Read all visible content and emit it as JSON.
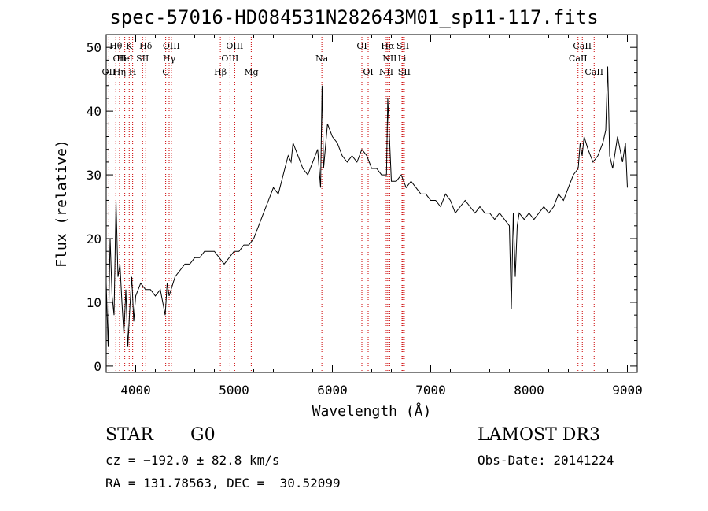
{
  "title": "spec-57016-HD084531N282643M01_sp11-117.fits",
  "info": {
    "class": "STAR",
    "subclass": "G0",
    "survey": "LAMOST DR3",
    "cz": "cz = −192.0 ± 82.8 km/s",
    "obs_date": "Obs-Date: 20141224",
    "coords": "RA = 131.78563, DEC =  30.52099"
  },
  "colors": {
    "spectrum": "#000000",
    "line_markers": "#cc0000",
    "axes": "#000000"
  },
  "chart_data": {
    "type": "line",
    "title": "spec-57016-HD084531N282643M01_sp11-117.fits",
    "xlabel": "Wavelength (Å)",
    "ylabel": "Flux (relative)",
    "xlim": [
      3700,
      9100
    ],
    "ylim": [
      -1,
      52
    ],
    "xticks": [
      4000,
      5000,
      6000,
      7000,
      8000,
      9000
    ],
    "yticks": [
      0,
      10,
      20,
      30,
      40,
      50
    ],
    "grid": false,
    "series": [
      {
        "x": [
          3700,
          3720,
          3740,
          3760,
          3780,
          3800,
          3820,
          3840,
          3860,
          3880,
          3900,
          3920,
          3940,
          3960,
          3980,
          4000,
          4050,
          4100,
          4150,
          4200,
          4250,
          4300,
          4320,
          4340,
          4400,
          4450,
          4500,
          4550,
          4600,
          4650,
          4700,
          4750,
          4800,
          4850,
          4900,
          4950,
          5000,
          5050,
          5100,
          5150,
          5200,
          5250,
          5300,
          5350,
          5400,
          5450,
          5500,
          5550,
          5580,
          5600,
          5650,
          5700,
          5750,
          5800,
          5850,
          5880,
          5895,
          5910,
          5950,
          6000,
          6050,
          6100,
          6150,
          6200,
          6250,
          6300,
          6350,
          6400,
          6450,
          6500,
          6550,
          6563,
          6600,
          6650,
          6700,
          6750,
          6800,
          6850,
          6900,
          6950,
          7000,
          7050,
          7100,
          7150,
          7200,
          7250,
          7300,
          7350,
          7400,
          7450,
          7500,
          7550,
          7600,
          7650,
          7700,
          7750,
          7800,
          7820,
          7840,
          7860,
          7880,
          7900,
          7950,
          8000,
          8050,
          8100,
          8150,
          8200,
          8250,
          8300,
          8350,
          8400,
          8450,
          8500,
          8520,
          8540,
          8560,
          8600,
          8650,
          8700,
          8750,
          8780,
          8800,
          8820,
          8850,
          8900,
          8950,
          8980,
          9000
        ],
        "y": [
          13,
          3,
          20,
          11,
          8,
          26,
          14,
          16,
          10,
          5,
          12,
          3,
          9,
          14,
          7,
          11,
          13,
          12,
          12,
          11,
          12,
          8,
          13,
          11,
          14,
          15,
          16,
          16,
          17,
          17,
          18,
          18,
          18,
          17,
          16,
          17,
          18,
          18,
          19,
          19,
          20,
          22,
          24,
          26,
          28,
          27,
          30,
          33,
          32,
          35,
          33,
          31,
          30,
          32,
          34,
          28,
          44,
          31,
          38,
          36,
          35,
          33,
          32,
          33,
          32,
          34,
          33,
          31,
          31,
          30,
          30,
          42,
          29,
          29,
          30,
          28,
          29,
          28,
          27,
          27,
          26,
          26,
          25,
          27,
          26,
          24,
          25,
          26,
          25,
          24,
          25,
          24,
          24,
          23,
          24,
          23,
          22,
          9,
          24,
          14,
          22,
          24,
          23,
          24,
          23,
          24,
          25,
          24,
          25,
          27,
          26,
          28,
          30,
          31,
          35,
          33,
          36,
          34,
          32,
          33,
          35,
          37,
          47,
          33,
          31,
          36,
          32,
          35,
          28
        ]
      }
    ],
    "line_labels": [
      {
        "name": "Hθ",
        "wl": 3798,
        "row": 1
      },
      {
        "name": "CII",
        "wl": 3836,
        "row": 2
      },
      {
        "name": "OII",
        "wl": 3727,
        "row": 3
      },
      {
        "name": "K",
        "wl": 3934,
        "row": 1
      },
      {
        "name": "HeI",
        "wl": 3889,
        "row": 2
      },
      {
        "name": "Hη",
        "wl": 3835,
        "row": 3
      },
      {
        "name": "Hδ",
        "wl": 4102,
        "row": 1
      },
      {
        "name": "SII",
        "wl": 4070,
        "row": 2
      },
      {
        "name": "H",
        "wl": 3969,
        "row": 3
      },
      {
        "name": "OIII",
        "wl": 4363,
        "row": 1
      },
      {
        "name": "Hγ",
        "wl": 4340,
        "row": 2
      },
      {
        "name": "G",
        "wl": 4305,
        "row": 3
      },
      {
        "name": "OIII",
        "wl": 5007,
        "row": 1
      },
      {
        "name": "OIII",
        "wl": 4959,
        "row": 2
      },
      {
        "name": "Hβ",
        "wl": 4861,
        "row": 3
      },
      {
        "name": "Mg",
        "wl": 5175,
        "row": 3
      },
      {
        "name": "Na",
        "wl": 5893,
        "row": 2
      },
      {
        "name": "OI",
        "wl": 6300,
        "row": 1
      },
      {
        "name": "OI",
        "wl": 6364,
        "row": 3
      },
      {
        "name": "Hα",
        "wl": 6563,
        "row": 1
      },
      {
        "name": "NII",
        "wl": 6583,
        "row": 2
      },
      {
        "name": "NII",
        "wl": 6548,
        "row": 3
      },
      {
        "name": "SII",
        "wl": 6717,
        "row": 1
      },
      {
        "name": "Li",
        "wl": 6708,
        "row": 2
      },
      {
        "name": "SII",
        "wl": 6731,
        "row": 3
      },
      {
        "name": "CaII",
        "wl": 8542,
        "row": 1
      },
      {
        "name": "CaII",
        "wl": 8498,
        "row": 2
      },
      {
        "name": "CaII",
        "wl": 8662,
        "row": 3
      }
    ],
    "marker_lines": [
      3727,
      3798,
      3836,
      3889,
      3934,
      3969,
      4070,
      4102,
      4305,
      4340,
      4363,
      4861,
      4959,
      5007,
      5175,
      5893,
      6300,
      6364,
      6548,
      6563,
      6583,
      6708,
      6717,
      6731,
      8498,
      8542,
      8662
    ]
  }
}
